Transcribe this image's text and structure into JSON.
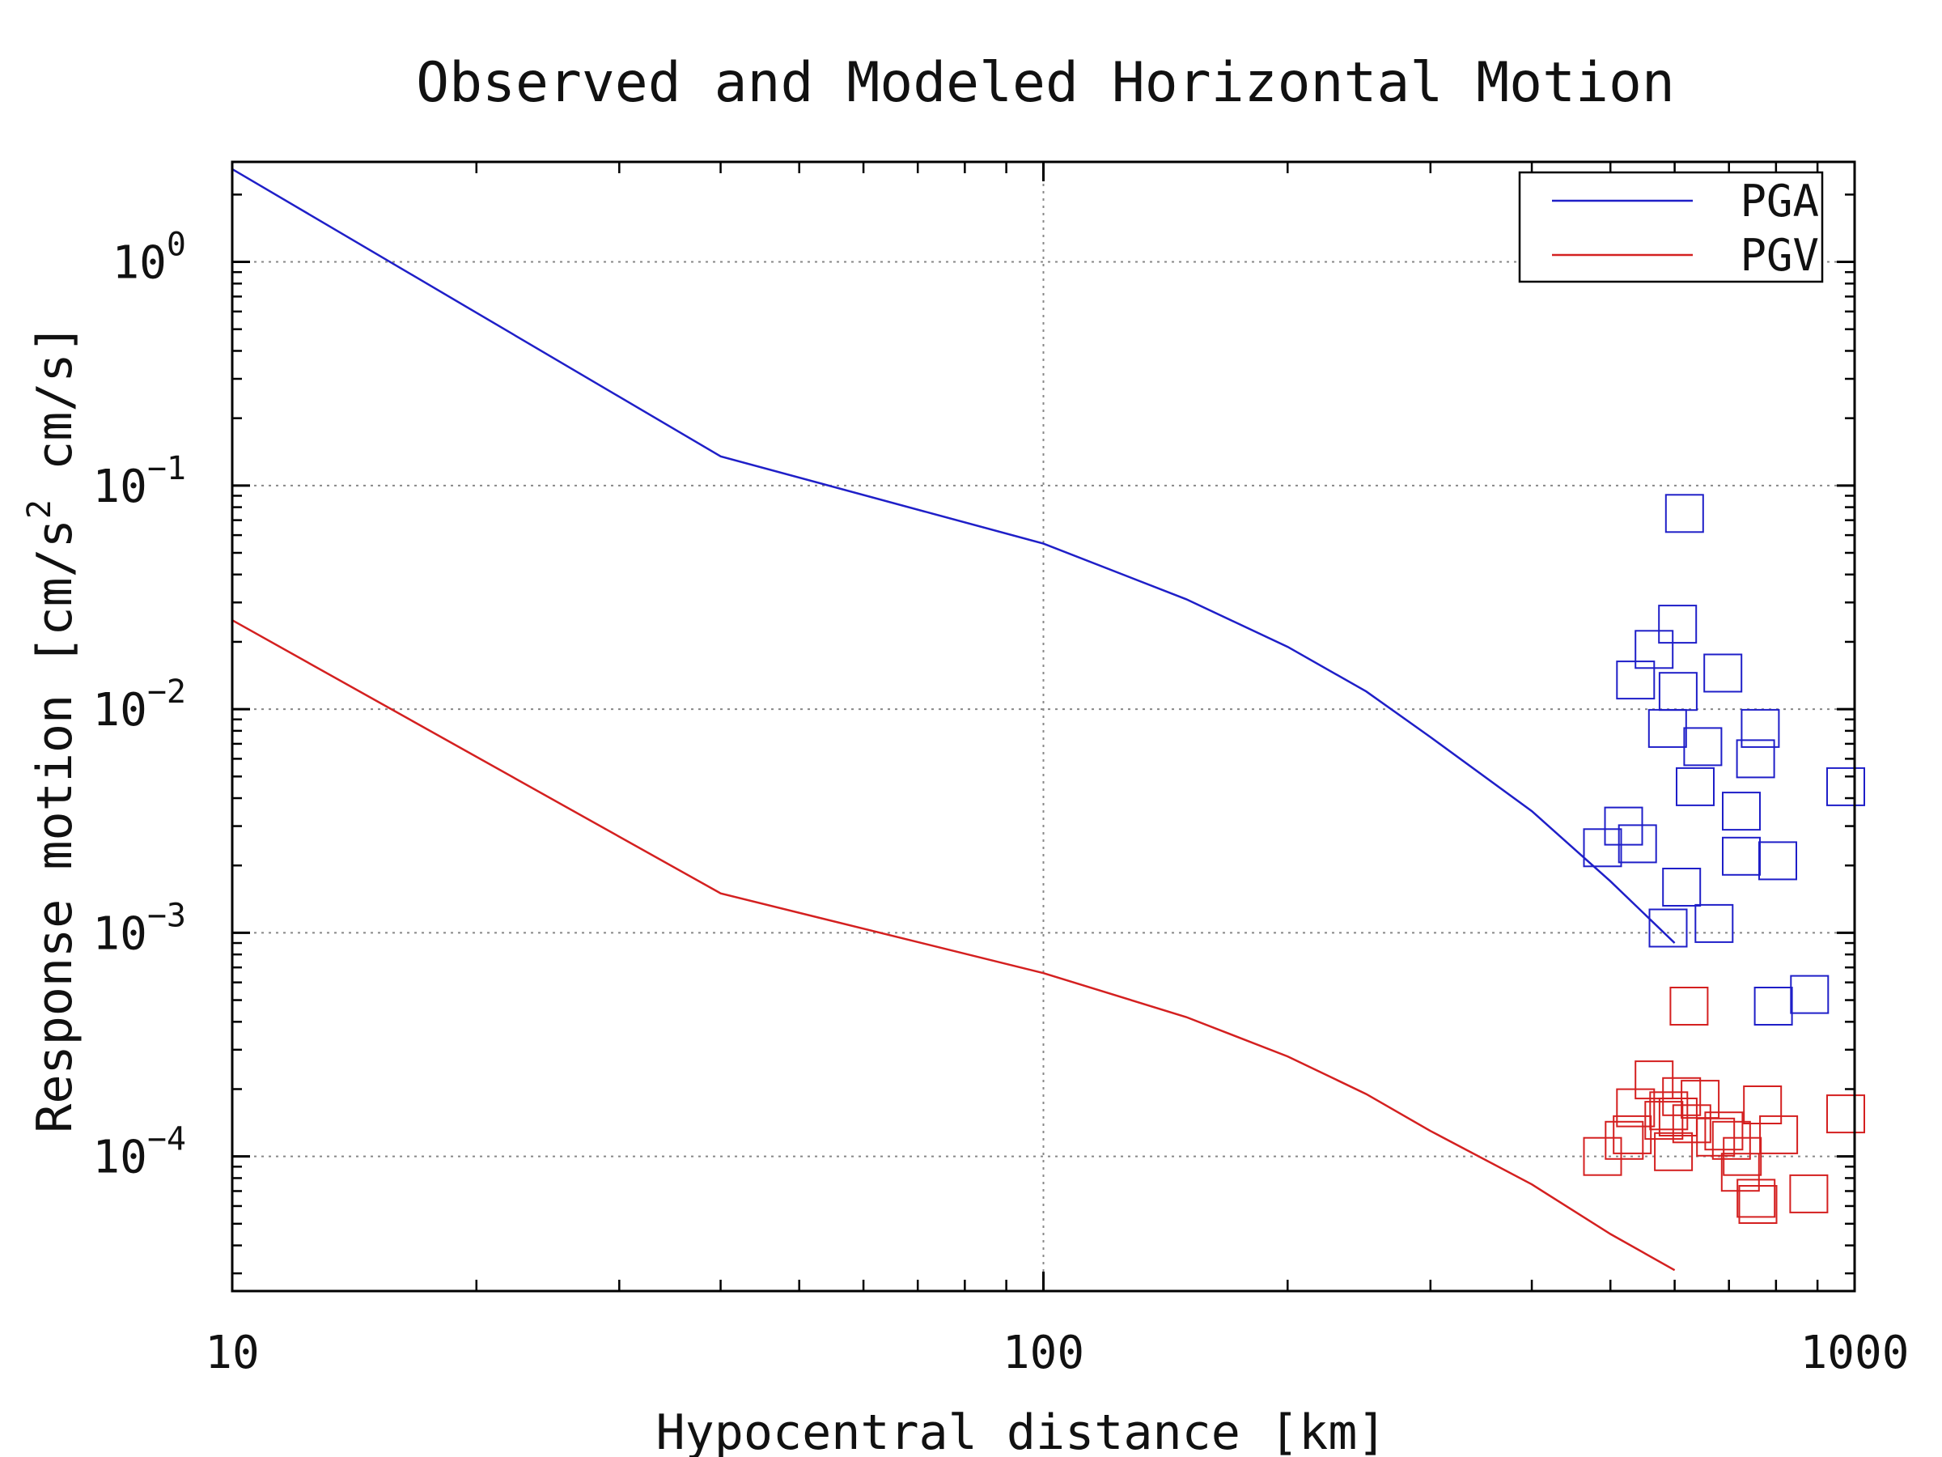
{
  "chart_data": {
    "type": "scatter",
    "title": "Observed and Modeled Horizontal Motion",
    "xlabel": "Hypocentral distance [km]",
    "ylabel": "Response motion [cm/s² cm/s]",
    "ylabel_parts": {
      "pre": "Response motion [cm/s",
      "sup": "2",
      "post": " cm/s]"
    },
    "x_scale": "log",
    "y_scale": "log",
    "xlim": [
      10,
      1000
    ],
    "ylim": [
      2.5e-05,
      2.8
    ],
    "grid": true,
    "legend_position": "top-right",
    "x_ticks": [
      {
        "value": 10,
        "label": "10"
      },
      {
        "value": 100,
        "label": "100"
      },
      {
        "value": 1000,
        "label": "1000"
      }
    ],
    "y_ticks": [
      {
        "value": 1,
        "base": "10",
        "exp": "0"
      },
      {
        "value": 0.1,
        "base": "10",
        "exp": "−1"
      },
      {
        "value": 0.01,
        "base": "10",
        "exp": "−2"
      },
      {
        "value": 0.001,
        "base": "10",
        "exp": "−3"
      },
      {
        "value": 0.0001,
        "base": "10",
        "exp": "−4"
      }
    ],
    "colors": {
      "PGA": "#1f1fc8",
      "PGV": "#d42020",
      "grid": "#888888"
    },
    "lines": [
      {
        "name": "PGA",
        "x": [
          10,
          40,
          100,
          150,
          200,
          250,
          300,
          400,
          500,
          600
        ],
        "y": [
          2.6,
          0.135,
          0.055,
          0.031,
          0.019,
          0.012,
          0.0075,
          0.0035,
          0.0017,
          0.0009
        ]
      },
      {
        "name": "PGV",
        "x": [
          10,
          40,
          100,
          150,
          200,
          250,
          300,
          400,
          500,
          600
        ],
        "y": [
          0.025,
          0.0015,
          0.00066,
          0.00042,
          0.00028,
          0.00019,
          0.00013,
          7.5e-05,
          4.5e-05,
          3.1e-05
        ]
      }
    ],
    "scatter": [
      {
        "name": "PGA",
        "points": [
          {
            "x": 617,
            "y": 0.075
          },
          {
            "x": 605,
            "y": 0.024
          },
          {
            "x": 566,
            "y": 0.0185
          },
          {
            "x": 537,
            "y": 0.0135
          },
          {
            "x": 606,
            "y": 0.012
          },
          {
            "x": 688,
            "y": 0.0145
          },
          {
            "x": 588,
            "y": 0.0082
          },
          {
            "x": 650,
            "y": 0.0068
          },
          {
            "x": 765,
            "y": 0.0082
          },
          {
            "x": 755,
            "y": 0.006
          },
          {
            "x": 636,
            "y": 0.0045
          },
          {
            "x": 975,
            "y": 0.0045
          },
          {
            "x": 725,
            "y": 0.0035
          },
          {
            "x": 519,
            "y": 0.003
          },
          {
            "x": 540,
            "y": 0.0025
          },
          {
            "x": 489,
            "y": 0.0024
          },
          {
            "x": 725,
            "y": 0.0022
          },
          {
            "x": 804,
            "y": 0.0021
          },
          {
            "x": 612,
            "y": 0.0016
          },
          {
            "x": 671,
            "y": 0.0011
          },
          {
            "x": 589,
            "y": 0.00105
          },
          {
            "x": 880,
            "y": 0.00053
          },
          {
            "x": 794,
            "y": 0.00047
          }
        ]
      },
      {
        "name": "PGV",
        "points": [
          {
            "x": 625,
            "y": 0.00047
          },
          {
            "x": 566,
            "y": 0.00022
          },
          {
            "x": 612,
            "y": 0.000185
          },
          {
            "x": 645,
            "y": 0.00018
          },
          {
            "x": 537,
            "y": 0.000165
          },
          {
            "x": 590,
            "y": 0.00016
          },
          {
            "x": 770,
            "y": 0.00017
          },
          {
            "x": 975,
            "y": 0.000155
          },
          {
            "x": 606,
            "y": 0.00015
          },
          {
            "x": 582,
            "y": 0.000145
          },
          {
            "x": 630,
            "y": 0.00014
          },
          {
            "x": 690,
            "y": 0.00013
          },
          {
            "x": 806,
            "y": 0.000125
          },
          {
            "x": 532,
            "y": 0.000125
          },
          {
            "x": 674,
            "y": 0.000122
          },
          {
            "x": 705,
            "y": 0.000118
          },
          {
            "x": 520,
            "y": 0.000118
          },
          {
            "x": 598,
            "y": 0.000105
          },
          {
            "x": 489,
            "y": 0.0001
          },
          {
            "x": 727,
            "y": 0.0001
          },
          {
            "x": 723,
            "y": 8.5e-05
          },
          {
            "x": 878,
            "y": 6.8e-05
          },
          {
            "x": 756,
            "y": 6.5e-05
          },
          {
            "x": 760,
            "y": 6.1e-05
          }
        ]
      }
    ]
  }
}
